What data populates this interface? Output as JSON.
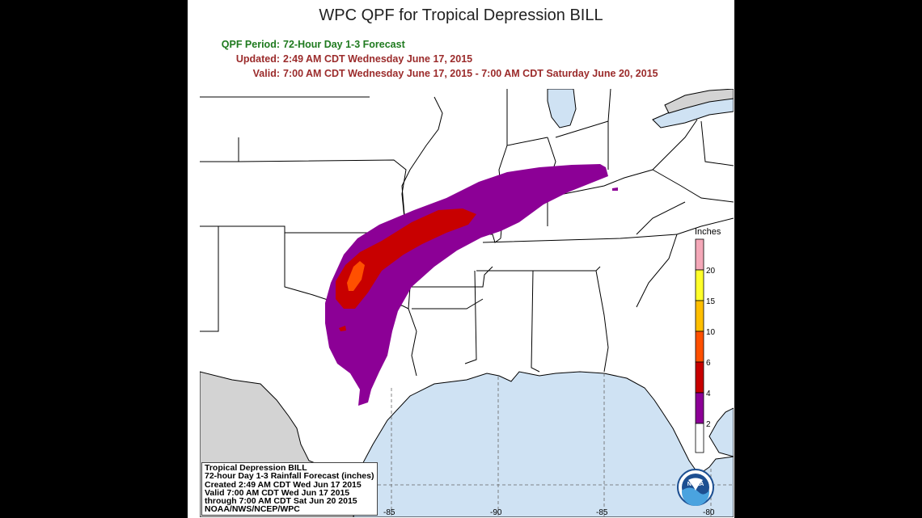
{
  "title": "WPC QPF for Tropical Depression BILL",
  "meta": {
    "period_label": "QPF Period:",
    "period_value": "72-Hour Day 1-3 Forecast",
    "updated_label": "Updated:",
    "updated_value": "2:49 AM CDT Wednesday June 17, 2015",
    "valid_label": "Valid:",
    "valid_value": "7:00 AM CDT Wednesday June 17, 2015 - 7:00 AM CDT Saturday June 20, 2015"
  },
  "legend": {
    "title": "Inches",
    "levels": [
      {
        "label": "20",
        "color": "#f4a8b8"
      },
      {
        "label": "15",
        "color": "#ffff2a"
      },
      {
        "label": "10",
        "color": "#ffbf00"
      },
      {
        "label": "6",
        "color": "#ff5000"
      },
      {
        "label": "4",
        "color": "#c80000"
      },
      {
        "label": "2",
        "color": "#8c0096"
      }
    ],
    "bottom_color": "#ffffff"
  },
  "longitude_labels": [
    "-85",
    "-90",
    "-85",
    "-80"
  ],
  "caption": {
    "line1": "Tropical Depression BILL",
    "line2": "72-hour Day 1-3 Rainfall Forecast (inches)",
    "line3": "Created 2:49 AM CDT Wed Jun 17 2015",
    "line4": "Valid 7:00 AM CDT Wed Jun 17 2015",
    "line5": "through 7:00 AM CDT Sat Jun 20 2015",
    "line6": "NOAA/NWS/NCEP/WPC"
  },
  "logo_text": "NOAA",
  "colors": {
    "water": "#cfe2f3",
    "land": "#ffffff",
    "foreign_land": "#d3d3d3",
    "purple": "#8c0096",
    "red": "#c80000",
    "orange": "#ff5000"
  }
}
